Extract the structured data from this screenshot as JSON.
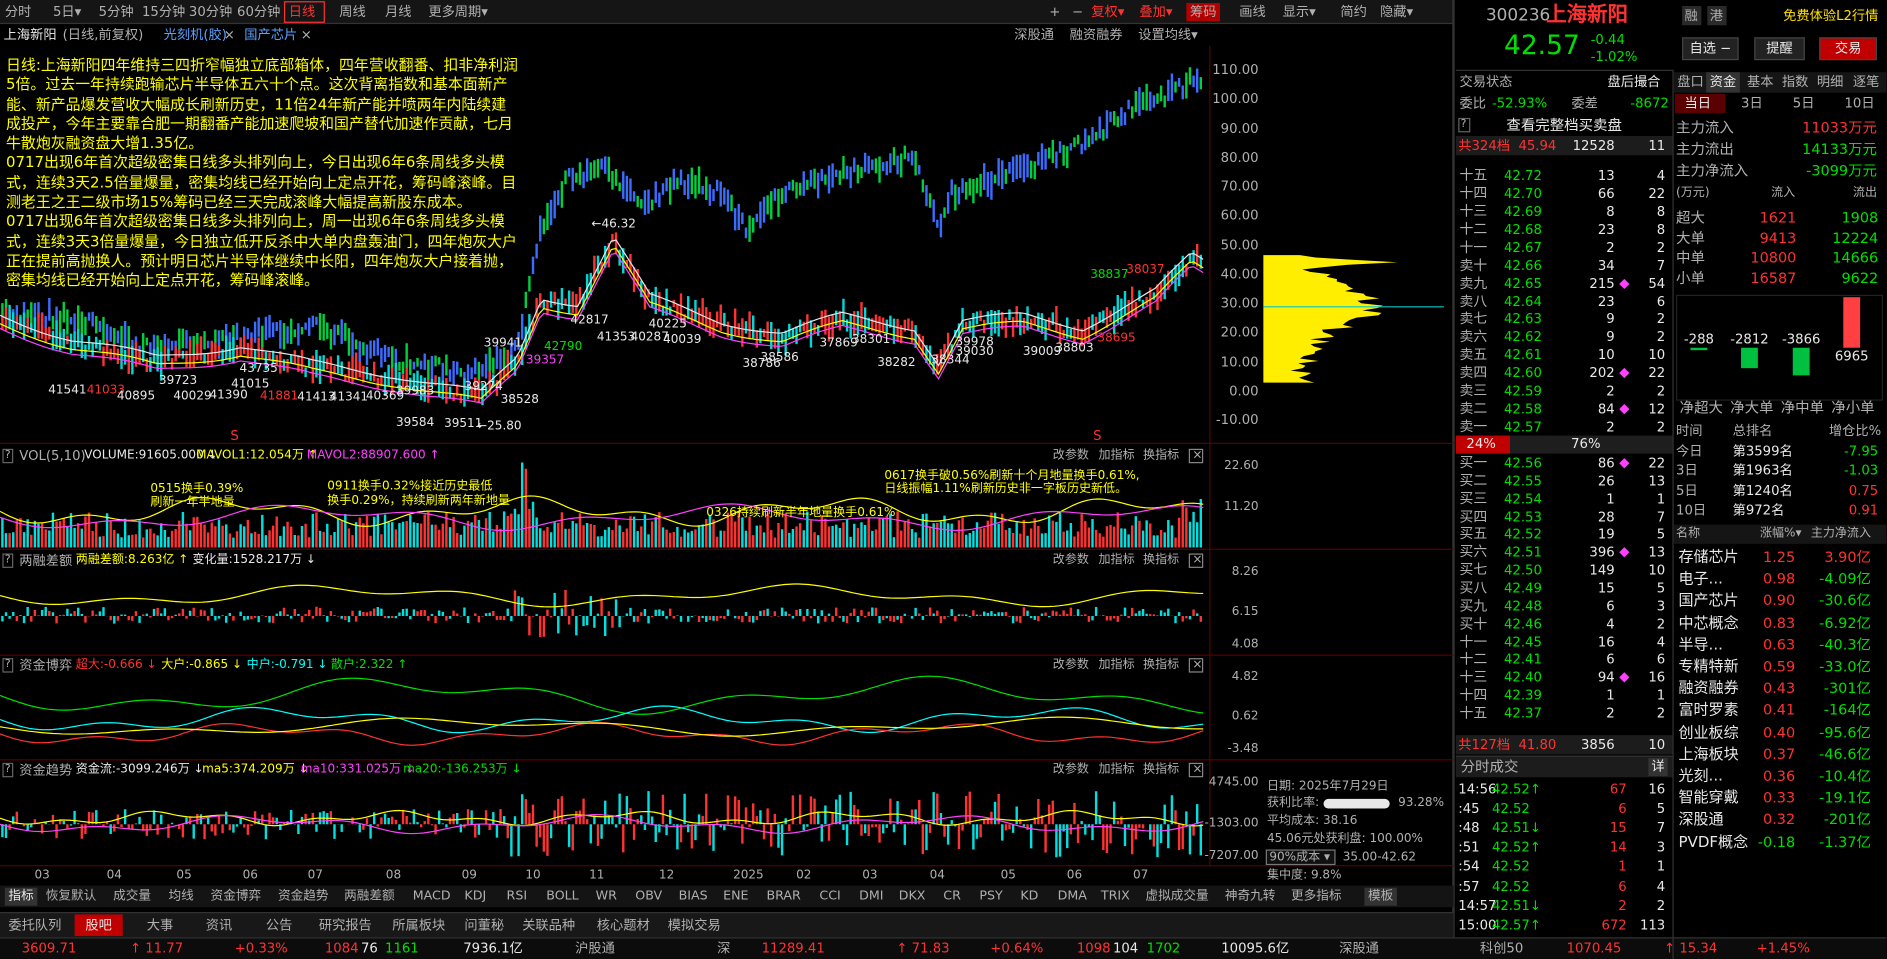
{
  "toolbar": {
    "periods": [
      "分时",
      "5日▾",
      "5分钟",
      "15分钟",
      "30分钟",
      "60分钟",
      "日线",
      "周线",
      "月线",
      "更多周期▾"
    ],
    "tools": [
      "+",
      "−",
      "复权▾",
      "叠加▾",
      "筹码",
      "画线",
      "显示▾",
      "简约",
      "隐藏▾"
    ]
  },
  "stock_bar": {
    "name": "上海新阳",
    "mode": "(日线,前复权)",
    "tags": [
      "光刻机(胶)",
      "国产芯片"
    ],
    "links": [
      "深股通",
      "融资融券",
      "设置均线▾"
    ]
  },
  "help": "?",
  "close": "×",
  "notes": [
    "日线:上海新阳四年维持三四折窄幅独立底部箱体，四年营收翻番、扣非净利润5倍。过去一年持续跑输芯片半导体五六十个点。这次背离指数和基本面新产能、新产品爆发营收大幅成长刷新历史，11倍24年新产能并喷两年内陆续建成投产，今年主要靠合肥一期翻番产能加速爬坡和国产替代加速作贡献，七月牛散炮灰融资盘大增1.35亿。",
    "0717出现6年首次超级密集日线多头排列向上，今日出现6年6条周线多头模式，连续3天2.5倍量爆量，密集均线已经开始向上定点开花，筹码峰滚峰。目测老王之王二级市场15%筹码已经三天完成滚峰大幅提高新股东成本。",
    "0717出现6年首次超级密集日线多头排列向上，周一出现6年6条周线多头模式，连续3天3倍量爆量，今日独立低开反杀中大单内盘轰油门，四年炮灰大户正在提前高抛换人。预计明日芯片半导体继续中长阳，四年炮灰大户接着抛，密集均线已经开始向上定点开花，筹码峰滚峰。"
  ],
  "price_axis": [
    "110.00",
    "100.00",
    "90.00",
    "80.00",
    "70.00",
    "60.00",
    "50.00",
    "40.00",
    "30.00",
    "20.00",
    "10.00",
    "0.00",
    "-10.00"
  ],
  "price_labels": [
    "←46.32",
    "←25.80",
    "42817",
    "42790",
    "39357",
    "41353",
    "40287",
    "40225",
    "40039",
    "38837",
    "38037",
    "38695",
    "38282",
    "38344",
    "39978",
    "38528",
    "39584",
    "39511",
    "39274",
    "41541",
    "41033",
    "40895",
    "41390",
    "41015",
    "41881",
    "41413",
    "41341",
    "40369",
    "39983",
    "39723",
    "40029",
    "43735",
    "39941",
    "38786",
    "38586",
    "38301",
    "37869",
    "38803",
    "39009",
    "39030"
  ],
  "signal": "S",
  "panel_tools": [
    "改参数",
    "加指标",
    "换指标"
  ],
  "panels": [
    {
      "title": "VOL(5,10)",
      "fields": [
        "VOLUME:91605.000 ↓",
        "MAVOL1:12.054万 ↑",
        "MAVOL2:88907.600 ↑"
      ],
      "ticks": [
        "22.60",
        "11.20"
      ]
    },
    {
      "title": "两融差额",
      "fields": [
        "两融差额:8.263亿 ↑",
        "变化量:1528.217万 ↓"
      ],
      "ticks": [
        "8.26",
        "6.15",
        "4.08"
      ]
    },
    {
      "title": "资金博弈",
      "fields": [
        "超大:-0.666 ↓",
        "大户:-0.865 ↓",
        "中户:-0.791 ↓",
        "散户:2.322 ↑"
      ],
      "ticks": [
        "4.82",
        "0.62",
        "-3.48"
      ]
    },
    {
      "title": "资金趋势",
      "fields": [
        "资金流:-3099.246万 ↓",
        "ma5:374.209万 ↓",
        "ma10:331.025万 ↓",
        "ma20:-136.253万 ↓"
      ],
      "ticks": [
        "4745.00",
        "-1303.00",
        "-7207.00"
      ]
    }
  ],
  "volume_notes": [
    [
      "0515换手0.39%",
      "刷新一年半地量"
    ],
    [
      "0911换手0.32%接近历史最低",
      "换手0.29%，持续刷新两年新地量"
    ],
    [
      "0326持续刷新半年地量换手0.61%"
    ],
    [
      "0617换手破0.56%刷新十个月地量换手0.61%,",
      "日线振幅1.11%刷新历史非一字板历史新低。"
    ]
  ],
  "chips": {
    "date": "日期: 2025年7月29日",
    "profit_label": "获利比率:",
    "profit": "93.28%",
    "avg_cost": "平均成本: 38.16",
    "profit_at": "45.06元处获利盘: 100.00%",
    "cost_select": "90%成本 ▾",
    "cost_range": "35.00-42.62",
    "concentration": "集中度: 9.8%"
  },
  "x_axis": [
    "03",
    "04",
    "05",
    "06",
    "07",
    "08",
    "09",
    "10",
    "11",
    "12",
    "2025",
    "02",
    "03",
    "04",
    "05",
    "06",
    "07"
  ],
  "indicator_tabs": [
    "指标",
    "恢复默认",
    "成交量",
    "均线",
    "资金博弈",
    "资金趋势",
    "两融差额",
    "MACD",
    "KDJ",
    "RSI",
    "BOLL",
    "WR",
    "OBV",
    "BIAS",
    "ENE",
    "BRAR",
    "CCI",
    "DMI",
    "DKX",
    "CR",
    "PSY",
    "KD",
    "DMA",
    "TRIX",
    "虚拟成交量",
    "神奇九转",
    "更多指标",
    "模板"
  ],
  "bottom_tabs": [
    "委托队列",
    "股吧",
    "大事",
    "资讯",
    "公告",
    "研究报告",
    "所属板块",
    "问董秘",
    "关联品种",
    "核心题材",
    "模拟交易"
  ],
  "status": {
    "sh": [
      "3609.71",
      "↑ 11.77",
      "+0.33%",
      "1084",
      "76",
      "1161",
      "7936.1亿"
    ],
    "sh_link": "沪股通",
    "sz_label": "深",
    "sz": [
      "11289.41",
      "↑ 71.83",
      "+0.64%",
      "1098",
      "104",
      "1702",
      "10095.6亿"
    ],
    "sz_link": "深股通",
    "kc_label": "科创50",
    "kc": [
      "1070.45",
      "↑ 15.34",
      "+1.45%"
    ]
  },
  "quote": {
    "code": "300236",
    "name": "上海新阳",
    "badges": [
      "融",
      "港"
    ],
    "promo": "免费体验L2行情",
    "price": "42.57",
    "change": "-0.44",
    "pct": "-1.02%",
    "buttons": [
      "自选 −",
      "提醒",
      "交易"
    ]
  },
  "book": {
    "status_label": "交易状态",
    "status": "盘后撮合",
    "ratio_label": "委比",
    "ratio": "-52.93%",
    "diff_label": "委差",
    "diff": "-8672",
    "full_link": "查看完整档买卖盘",
    "sell_total": [
      "共324档",
      "45.94",
      "12528",
      "11"
    ],
    "sell": [
      [
        "十五",
        "42.72",
        "13",
        "4"
      ],
      [
        "十四",
        "42.70",
        "66",
        "22"
      ],
      [
        "十三",
        "42.69",
        "8",
        "8"
      ],
      [
        "十二",
        "42.68",
        "23",
        "8"
      ],
      [
        "十一",
        "42.67",
        "2",
        "2"
      ],
      [
        "卖十",
        "42.66",
        "34",
        "7"
      ],
      [
        "卖九",
        "42.65",
        "215",
        "54"
      ],
      [
        "卖八",
        "42.64",
        "23",
        "6"
      ],
      [
        "卖七",
        "42.63",
        "9",
        "2"
      ],
      [
        "卖六",
        "42.62",
        "9",
        "2"
      ],
      [
        "卖五",
        "42.61",
        "10",
        "10"
      ],
      [
        "卖四",
        "42.60",
        "202",
        "22"
      ],
      [
        "卖三",
        "42.59",
        "2",
        "2"
      ],
      [
        "卖二",
        "42.58",
        "84",
        "12"
      ],
      [
        "卖一",
        "42.57",
        "2",
        "2"
      ]
    ],
    "buy_share": "24%",
    "sell_share": "76%",
    "buy": [
      [
        "买一",
        "42.56",
        "86",
        "22"
      ],
      [
        "买二",
        "42.55",
        "26",
        "13"
      ],
      [
        "买三",
        "42.54",
        "1",
        "1"
      ],
      [
        "买四",
        "42.53",
        "28",
        "7"
      ],
      [
        "买五",
        "42.52",
        "19",
        "5"
      ],
      [
        "买六",
        "42.51",
        "396",
        "13"
      ],
      [
        "买七",
        "42.50",
        "149",
        "10"
      ],
      [
        "买八",
        "42.49",
        "15",
        "5"
      ],
      [
        "买九",
        "42.48",
        "6",
        "3"
      ],
      [
        "买十",
        "42.46",
        "4",
        "2"
      ],
      [
        "十一",
        "42.45",
        "16",
        "4"
      ],
      [
        "十二",
        "42.41",
        "6",
        "6"
      ],
      [
        "十三",
        "42.40",
        "94",
        "16"
      ],
      [
        "十四",
        "42.39",
        "1",
        "1"
      ],
      [
        "十五",
        "42.37",
        "2",
        "2"
      ]
    ],
    "buy_total": [
      "共127档",
      "41.80",
      "3856",
      "10"
    ]
  },
  "trades": {
    "title": "分时成交",
    "detail": "详",
    "rows": [
      [
        "14:56",
        "42.52↑",
        "67",
        "16"
      ],
      [
        ":45",
        "42.52",
        "6",
        "5"
      ],
      [
        ":48",
        "42.51↓",
        "15",
        "7"
      ],
      [
        ":51",
        "42.52↑",
        "14",
        "3"
      ],
      [
        ":54",
        "42.52",
        "1",
        "1"
      ],
      [
        ":57",
        "42.52",
        "6",
        "4"
      ],
      [
        "14:57",
        "42.51↓",
        "2",
        "2"
      ],
      [
        "15:00",
        "42.57↑",
        "672",
        "113"
      ]
    ]
  },
  "flow": {
    "tabs": [
      "盘口",
      "资金",
      "基本",
      "指数",
      "明细",
      "逐笔"
    ],
    "periods": [
      "当日",
      "3日",
      "5日",
      "10日"
    ],
    "main": [
      [
        "主力流入",
        "11033万元"
      ],
      [
        "主力流出",
        "14133万元"
      ],
      [
        "主力净流入",
        "-3099万元"
      ]
    ],
    "head": [
      "(万元)",
      "流入",
      "流出"
    ],
    "rows": [
      [
        "超大",
        "1621",
        "1908"
      ],
      [
        "大单",
        "9413",
        "12224"
      ],
      [
        "中单",
        "10800",
        "14666"
      ],
      [
        "小单",
        "16587",
        "9622"
      ]
    ],
    "net": [
      -288,
      -2812,
      -3866,
      6965
    ],
    "net_labels": [
      "净超大",
      "净大单",
      "净中单",
      "净小单"
    ],
    "rank_head": [
      "时间",
      "总排名",
      "增仓比%"
    ],
    "ranks": [
      [
        "今日",
        "第3599名",
        "-7.95"
      ],
      [
        "3日",
        "第1963名",
        "-1.03"
      ],
      [
        "5日",
        "第1240名",
        "0.75"
      ],
      [
        "10日",
        "第972名",
        "0.91"
      ]
    ]
  },
  "sectors": {
    "head": [
      "名称",
      "涨幅%▾",
      "主力净流入"
    ],
    "rows": [
      [
        "存储芯片",
        "1.25",
        "3.90亿"
      ],
      [
        "电子...",
        "0.98",
        "-4.09亿"
      ],
      [
        "国产芯片",
        "0.90",
        "-30.6亿"
      ],
      [
        "中芯概念",
        "0.83",
        "-6.92亿"
      ],
      [
        "半导...",
        "0.63",
        "-40.3亿"
      ],
      [
        "专精特新",
        "0.59",
        "-33.0亿"
      ],
      [
        "融资融券",
        "0.43",
        "-301亿"
      ],
      [
        "富时罗素",
        "0.41",
        "-164亿"
      ],
      [
        "创业板综",
        "0.40",
        "-95.6亿"
      ],
      [
        "上海板块",
        "0.37",
        "-46.6亿"
      ],
      [
        "光刻...",
        "0.36",
        "-10.4亿"
      ],
      [
        "智能穿戴",
        "0.33",
        "-19.1亿"
      ],
      [
        "深股通",
        "0.32",
        "-201亿"
      ],
      [
        "PVDF概念",
        "-0.18",
        "-1.37亿"
      ]
    ]
  }
}
